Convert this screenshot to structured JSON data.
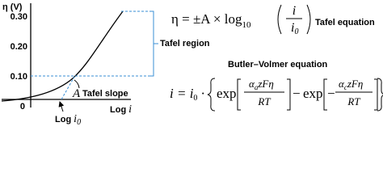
{
  "axis": {
    "y_label": "η (V)",
    "y_ticks": [
      "0.30",
      "0.20",
      "0.10"
    ],
    "origin": "0",
    "x_label": {
      "text": "Log",
      "var": "i"
    }
  },
  "annotations": {
    "tafel_region": "Tafel region",
    "slope_symbol": "A",
    "slope_label": "Tafel slope",
    "exchange": {
      "text": "Log",
      "var": "i",
      "sub": "0"
    }
  },
  "tafel_equation": {
    "lhs": "η = ±A × log",
    "log_sub": "10",
    "num": "i",
    "den": "i",
    "den_sub": "0",
    "label": "Tafel equation"
  },
  "butler_volmer": {
    "title": "Butler–Volmer equation",
    "lhs": "i = i",
    "lhs_sub": "0",
    "dot": "·",
    "exp1": "exp",
    "num1": "α",
    "num1_sub": "a",
    "num1_rest": "zFη",
    "den1": "RT",
    "minus": "−",
    "exp2": "exp",
    "minus2": "−",
    "num2": "α",
    "num2_sub": "c",
    "num2_rest": "zFη",
    "den2": "RT"
  }
}
